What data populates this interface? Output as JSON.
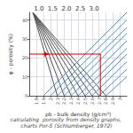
{
  "chart_data": {
    "type": "line",
    "title": "1.0  1.5  2.0  2.5  3.0",
    "x_label": "ρb - bulk density (g/cm³)",
    "y_label": "φ - porosity (%)",
    "caption": "calculating  porosity from density graphs, charts Por-5 (Schlumberger, 1972)",
    "xlim": [
      1.7,
      3.1
    ],
    "ylim": [
      0,
      44
    ],
    "xticks": [
      1.8,
      1.9,
      2.0,
      2.1,
      2.2,
      2.3,
      2.4,
      2.5,
      2.6,
      2.7,
      2.8,
      2.9,
      3.0
    ],
    "yticks": [
      0,
      10,
      20,
      30,
      40
    ],
    "grid": true,
    "series": [
      {
        "x": [
          1.75,
          2.1
        ],
        "values": [
          44,
          0
        ],
        "color": "#555555"
      },
      {
        "x": [
          1.75,
          2.2
        ],
        "values": [
          44,
          0
        ],
        "color": "#555555"
      },
      {
        "x": [
          1.75,
          2.3
        ],
        "values": [
          44,
          0
        ],
        "color": "#555555"
      },
      {
        "x": [
          1.75,
          2.4
        ],
        "values": [
          44,
          0
        ],
        "color": "#555555"
      },
      {
        "x": [
          1.75,
          2.5
        ],
        "values": [
          44,
          0
        ],
        "color": "#555555"
      },
      {
        "x": [
          1.75,
          2.6
        ],
        "values": [
          44,
          0
        ],
        "color": "#555555"
      },
      {
        "x": [
          1.75,
          2.7
        ],
        "values": [
          44,
          0
        ],
        "color": "#555555"
      },
      {
        "x": [
          1.75,
          2.8
        ],
        "values": [
          44,
          0
        ],
        "color": "#555555"
      },
      {
        "x": [
          1.9,
          3.1
        ],
        "values": [
          0,
          44
        ],
        "color": "#4a90c4"
      },
      {
        "x": [
          2.0,
          3.1
        ],
        "values": [
          0,
          40
        ],
        "color": "#4a90c4"
      },
      {
        "x": [
          2.1,
          3.1
        ],
        "values": [
          0,
          36
        ],
        "color": "#4a90c4"
      },
      {
        "x": [
          2.2,
          3.1
        ],
        "values": [
          0,
          33
        ],
        "color": "#4a90c4"
      },
      {
        "x": [
          2.3,
          3.1
        ],
        "values": [
          0,
          29
        ],
        "color": "#4a90c4"
      },
      {
        "x": [
          2.4,
          3.1
        ],
        "values": [
          0,
          25
        ],
        "color": "#4a90c4"
      },
      {
        "x": [
          2.5,
          3.1
        ],
        "values": [
          0,
          22
        ],
        "color": "#4a90c4"
      },
      {
        "x": [
          2.6,
          3.1
        ],
        "values": [
          0,
          18
        ],
        "color": "#4a90c4"
      },
      {
        "x": [
          2.7,
          3.1
        ],
        "values": [
          0,
          14
        ],
        "color": "#4a90c4"
      },
      {
        "x": [
          2.8,
          3.1
        ],
        "values": [
          0,
          10
        ],
        "color": "#4a90c4"
      },
      {
        "x": [
          1.7,
          2.72
        ],
        "values": [
          22,
          22
        ],
        "color": "#cc0000"
      },
      {
        "x": [
          2.72,
          2.72
        ],
        "values": [
          0,
          22
        ],
        "color": "#cc0000"
      },
      {
        "x": [
          1.89,
          1.97
        ],
        "values": [
          22,
          22
        ],
        "color": "#cc0000",
        "marker": "arrow"
      }
    ]
  }
}
